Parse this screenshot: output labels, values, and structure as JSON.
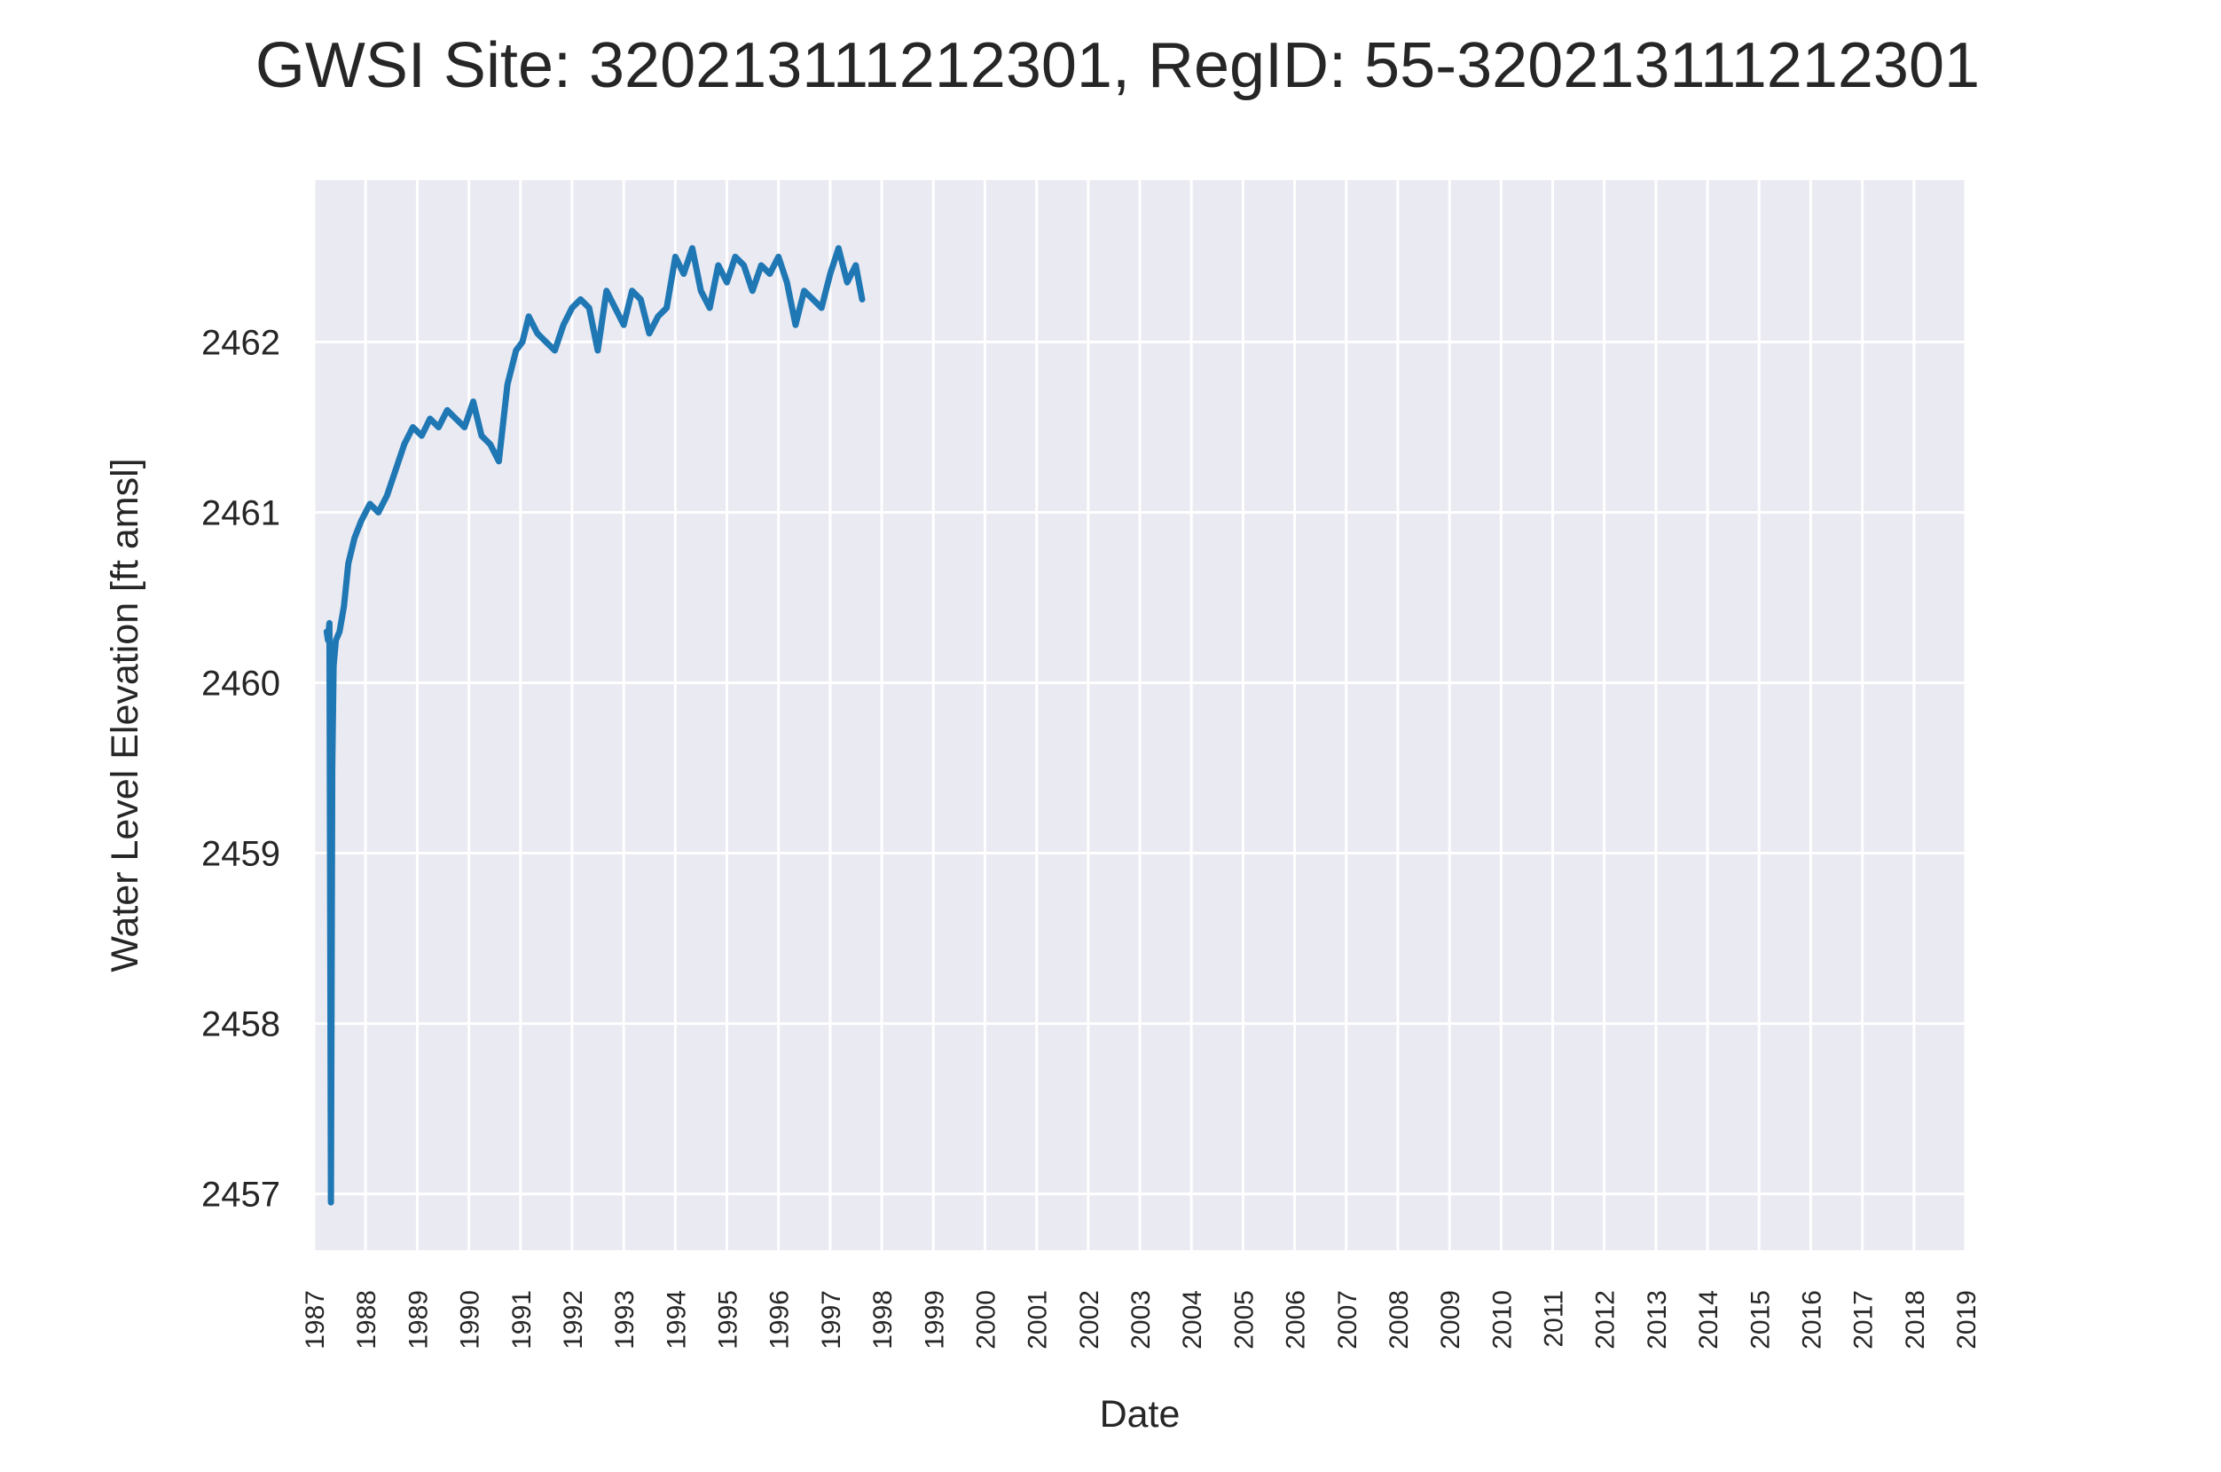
{
  "chart_data": {
    "type": "line",
    "title": "GWSI Site: 320213111212301, RegID: 55-320213111212301",
    "xlabel": "Date",
    "ylabel": "Water Level Elevation [ft amsl]",
    "x_range": [
      "1987-01-01",
      "2019-01-01"
    ],
    "ylim": [
      2456.67,
      2462.95
    ],
    "y_ticks": [
      2457,
      2458,
      2459,
      2460,
      2461,
      2462
    ],
    "x_ticks": [
      "1987",
      "1988",
      "1989",
      "1990",
      "1991",
      "1992",
      "1993",
      "1994",
      "1995",
      "1996",
      "1997",
      "1998",
      "1999",
      "2000",
      "2001",
      "2002",
      "2003",
      "2004",
      "2005",
      "2006",
      "2007",
      "2008",
      "2009",
      "2010",
      "2011",
      "2012",
      "2013",
      "2014",
      "2015",
      "2016",
      "2017",
      "2018",
      "2019"
    ],
    "grid": true,
    "background": "#eaeaf2",
    "grid_color": "#ffffff",
    "line_color": "#1f77b4",
    "series": [
      {
        "x": [
          "1987-04-01",
          "1987-04-10",
          "1987-04-20",
          "1987-05-01",
          "1987-05-10",
          "1987-05-20",
          "1987-06-05",
          "1987-07-01",
          "1987-08-01",
          "1987-09-01",
          "1987-10-15",
          "1987-12-01",
          "1988-02-01",
          "1988-04-01",
          "1988-06-01",
          "1988-08-01",
          "1988-10-01",
          "1988-12-01",
          "1989-02-01",
          "1989-04-01",
          "1989-06-01",
          "1989-08-01",
          "1989-10-01",
          "1989-12-01",
          "1990-02-01",
          "1990-04-01",
          "1990-06-01",
          "1990-08-01",
          "1990-10-01",
          "1990-12-01",
          "1991-01-15",
          "1991-03-01",
          "1991-05-01",
          "1991-07-01",
          "1991-09-01",
          "1991-11-01",
          "1992-01-01",
          "1992-03-01",
          "1992-05-01",
          "1992-07-01",
          "1992-09-01",
          "1992-11-01",
          "1993-01-01",
          "1993-03-01",
          "1993-05-01",
          "1993-07-01",
          "1993-09-01",
          "1993-11-01",
          "1994-01-01",
          "1994-03-01",
          "1994-05-01",
          "1994-07-01",
          "1994-09-01",
          "1994-11-01",
          "1995-01-01",
          "1995-03-01",
          "1995-05-01",
          "1995-07-01",
          "1995-09-01",
          "1995-11-01",
          "1996-01-01",
          "1996-03-01",
          "1996-05-01",
          "1996-07-01",
          "1996-09-01",
          "1996-11-01",
          "1997-01-01",
          "1997-03-01",
          "1997-05-01",
          "1997-07-01",
          "1997-08-15"
        ],
        "y": [
          2460.3,
          2460.25,
          2460.35,
          2456.95,
          2459.5,
          2460.1,
          2460.25,
          2460.3,
          2460.45,
          2460.7,
          2460.85,
          2460.95,
          2461.05,
          2461.0,
          2461.1,
          2461.25,
          2461.4,
          2461.5,
          2461.45,
          2461.55,
          2461.5,
          2461.6,
          2461.55,
          2461.5,
          2461.65,
          2461.45,
          2461.4,
          2461.3,
          2461.75,
          2461.95,
          2462.0,
          2462.15,
          2462.05,
          2462.0,
          2461.95,
          2462.1,
          2462.2,
          2462.25,
          2462.2,
          2461.95,
          2462.3,
          2462.2,
          2462.1,
          2462.3,
          2462.25,
          2462.05,
          2462.15,
          2462.2,
          2462.5,
          2462.4,
          2462.55,
          2462.3,
          2462.2,
          2462.45,
          2462.35,
          2462.5,
          2462.45,
          2462.3,
          2462.45,
          2462.4,
          2462.5,
          2462.35,
          2462.1,
          2462.3,
          2462.25,
          2462.2,
          2462.4,
          2462.55,
          2462.35,
          2462.45,
          2462.25
        ]
      }
    ]
  }
}
